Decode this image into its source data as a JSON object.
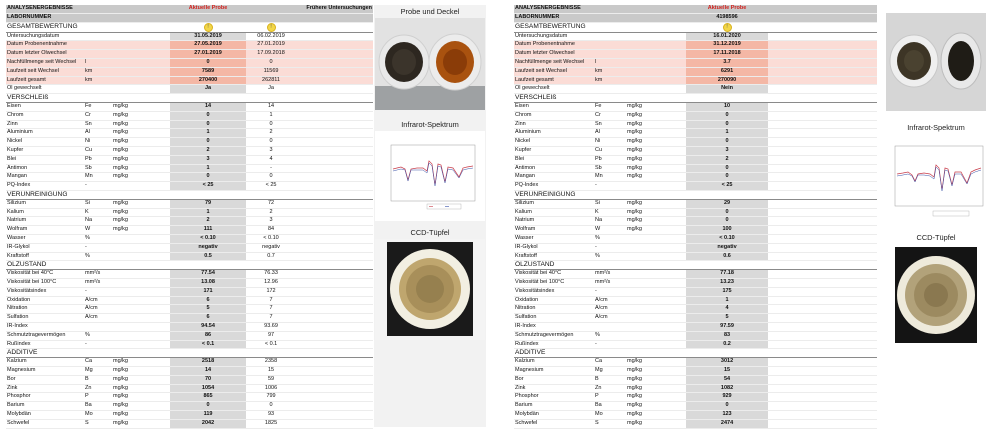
{
  "rows": [
    {
      "type": "hdr",
      "label": "ANALYSENERGEBNISSE",
      "cur": "Aktuelle Probe",
      "prev": "Frühere Untersuchungen",
      "curR": "Aktuelle Probe"
    },
    {
      "type": "hdr",
      "label": "LABORNUMMER",
      "cur": "",
      "prev": "",
      "curR": "4198596"
    },
    {
      "type": "sec",
      "label": "GESAMTBEWERTUNG",
      "dot": "!"
    },
    {
      "type": "row",
      "label": "Untersuchungsdatum",
      "sym": "",
      "unit": "",
      "cur": "31.05.2019",
      "prev": "06.02.2019",
      "curR": "16.01.2020"
    },
    {
      "type": "row",
      "label": "Datum Probenentnahme",
      "sym": "",
      "unit": "",
      "cur": "27.05.2019",
      "prev": "27.01.2019",
      "curR": "31.12.2019",
      "pink": true
    },
    {
      "type": "row",
      "label": "Datum letzter Ölwechsel",
      "sym": "",
      "unit": "",
      "cur": "27.01.2019",
      "prev": "17.09.2018",
      "curR": "17.11.2018",
      "pink": true
    },
    {
      "type": "row",
      "label": "Nachfüllmenge seit Wechsel",
      "sym": "l",
      "unit": "",
      "cur": "0",
      "prev": "0",
      "curR": "3.7",
      "pink": true
    },
    {
      "type": "row",
      "label": "Laufzeit seit Wechsel",
      "sym": "km",
      "unit": "",
      "cur": "7589",
      "prev": "11569",
      "curR": "6291",
      "pink": true
    },
    {
      "type": "row",
      "label": "Laufzeit gesamt",
      "sym": "km",
      "unit": "",
      "cur": "270400",
      "prev": "262811",
      "curR": "270090",
      "pink": true,
      "orange": true
    },
    {
      "type": "row",
      "label": "Öl gewechselt",
      "sym": "",
      "unit": "",
      "cur": "Ja",
      "prev": "Ja",
      "curR": "Nein"
    },
    {
      "type": "sec",
      "label": "VERSCHLEIß"
    },
    {
      "type": "row",
      "label": "Eisen",
      "sym": "Fe",
      "unit": "mg/kg",
      "cur": "14",
      "prev": "14",
      "curR": "10"
    },
    {
      "type": "row",
      "label": "Chrom",
      "sym": "Cr",
      "unit": "mg/kg",
      "cur": "0",
      "prev": "1",
      "curR": "0"
    },
    {
      "type": "row",
      "label": "Zinn",
      "sym": "Sn",
      "unit": "mg/kg",
      "cur": "0",
      "prev": "0",
      "curR": "0"
    },
    {
      "type": "row",
      "label": "Aluminium",
      "sym": "Al",
      "unit": "mg/kg",
      "cur": "1",
      "prev": "2",
      "curR": "1"
    },
    {
      "type": "row",
      "label": "Nickel",
      "sym": "Ni",
      "unit": "mg/kg",
      "cur": "0",
      "prev": "0",
      "curR": "0"
    },
    {
      "type": "row",
      "label": "Kupfer",
      "sym": "Cu",
      "unit": "mg/kg",
      "cur": "2",
      "prev": "3",
      "curR": "3"
    },
    {
      "type": "row",
      "label": "Blei",
      "sym": "Pb",
      "unit": "mg/kg",
      "cur": "3",
      "prev": "4",
      "curR": "2"
    },
    {
      "type": "row",
      "label": "Antimon",
      "sym": "Sb",
      "unit": "mg/kg",
      "cur": "1",
      "prev": "-",
      "curR": "0"
    },
    {
      "type": "row",
      "label": "Mangan",
      "sym": "Mn",
      "unit": "mg/kg",
      "cur": "0",
      "prev": "0",
      "curR": "0"
    },
    {
      "type": "row",
      "label": "PQ-Index",
      "sym": "-",
      "unit": "",
      "cur": "< 25",
      "prev": "< 25",
      "curR": "< 25"
    },
    {
      "type": "sec",
      "label": "VERUNREINIGUNG"
    },
    {
      "type": "row",
      "label": "Silizium",
      "sym": "Si",
      "unit": "mg/kg",
      "cur": "79",
      "prev": "72",
      "curR": "29"
    },
    {
      "type": "row",
      "label": "Kalium",
      "sym": "K",
      "unit": "mg/kg",
      "cur": "1",
      "prev": "2",
      "curR": "0"
    },
    {
      "type": "row",
      "label": "Natrium",
      "sym": "Na",
      "unit": "mg/kg",
      "cur": "2",
      "prev": "3",
      "curR": "0"
    },
    {
      "type": "row",
      "label": "Wolfram",
      "sym": "W",
      "unit": "mg/kg",
      "cur": "111",
      "prev": "84",
      "curR": "100"
    },
    {
      "type": "row",
      "label": "Wasser",
      "sym": "%",
      "unit": "",
      "cur": "< 0.10",
      "prev": "< 0.10",
      "curR": "< 0.10"
    },
    {
      "type": "row",
      "label": "IR-Glykol",
      "sym": "-",
      "unit": "",
      "cur": "negativ",
      "prev": "negativ",
      "curR": "negativ"
    },
    {
      "type": "row",
      "label": "Kraftstoff",
      "sym": "%",
      "unit": "",
      "cur": "0.5",
      "prev": "0.7",
      "curR": "0.6"
    },
    {
      "type": "sec",
      "label": "ÖLZUSTAND"
    },
    {
      "type": "row",
      "label": "Viskosität bei 40°C",
      "sym": "mm²/s",
      "unit": "",
      "cur": "77.54",
      "prev": "76.33",
      "curR": "77.18"
    },
    {
      "type": "row",
      "label": "Viskosität bei 100°C",
      "sym": "mm²/s",
      "unit": "",
      "cur": "13.08",
      "prev": "12.96",
      "curR": "13.23"
    },
    {
      "type": "row",
      "label": "Viskositätsindex",
      "sym": "-",
      "unit": "",
      "cur": "171",
      "prev": "172",
      "curR": "175"
    },
    {
      "type": "row",
      "label": "Oxidation",
      "sym": "A/cm",
      "unit": "",
      "cur": "6",
      "prev": "7",
      "curR": "1"
    },
    {
      "type": "row",
      "label": "Nitration",
      "sym": "A/cm",
      "unit": "",
      "cur": "5",
      "prev": "7",
      "curR": "4"
    },
    {
      "type": "row",
      "label": "Sulfation",
      "sym": "A/cm",
      "unit": "",
      "cur": "6",
      "prev": "7",
      "curR": "5"
    },
    {
      "type": "row",
      "label": "IR-Index",
      "sym": "",
      "unit": "",
      "cur": "94.54",
      "prev": "93.69",
      "curR": "97.59"
    },
    {
      "type": "row",
      "label": "Schmutztragevermögen",
      "sym": "%",
      "unit": "",
      "cur": "86",
      "prev": "97",
      "curR": "83"
    },
    {
      "type": "row",
      "label": "Rußindex",
      "sym": "-",
      "unit": "",
      "cur": "< 0.1",
      "prev": "< 0.1",
      "curR": "0.2"
    },
    {
      "type": "sec",
      "label": "ADDITIVE"
    },
    {
      "type": "row",
      "label": "Kalzium",
      "sym": "Ca",
      "unit": "mg/kg",
      "cur": "2518",
      "prev": "2358",
      "curR": "3012"
    },
    {
      "type": "row",
      "label": "Magnesium",
      "sym": "Mg",
      "unit": "mg/kg",
      "cur": "14",
      "prev": "15",
      "curR": "15"
    },
    {
      "type": "row",
      "label": "Bor",
      "sym": "B",
      "unit": "mg/kg",
      "cur": "70",
      "prev": "59",
      "curR": "54"
    },
    {
      "type": "row",
      "label": "Zink",
      "sym": "Zn",
      "unit": "mg/kg",
      "cur": "1054",
      "prev": "1006",
      "curR": "1082"
    },
    {
      "type": "row",
      "label": "Phosphor",
      "sym": "P",
      "unit": "mg/kg",
      "cur": "865",
      "prev": "799",
      "curR": "929"
    },
    {
      "type": "row",
      "label": "Barium",
      "sym": "Ba",
      "unit": "mg/kg",
      "cur": "0",
      "prev": "0",
      "curR": "0"
    },
    {
      "type": "row",
      "label": "Molybdän",
      "sym": "Mo",
      "unit": "mg/kg",
      "cur": "119",
      "prev": "93",
      "curR": "123"
    },
    {
      "type": "row",
      "label": "Schwefel",
      "sym": "S",
      "unit": "mg/kg",
      "cur": "2042",
      "prev": "1825",
      "curR": "2474"
    }
  ],
  "panels": {
    "probe_title": "Probe und Deckel",
    "ir_title": "Infrarot-Spektrum",
    "ccd_title": "CCD-Tüpfel"
  },
  "colors": {
    "header_bg": "#c9c9c9",
    "highlight_pink": "#fbdcd6",
    "highlight_red": "#f4b7a5",
    "highlight_orange": "#f9c77b",
    "current_label": "#d0201c",
    "status_dot": "#f2d648",
    "ir_line_red": "#c83c4a",
    "ir_line_blue": "#3a52a8"
  }
}
